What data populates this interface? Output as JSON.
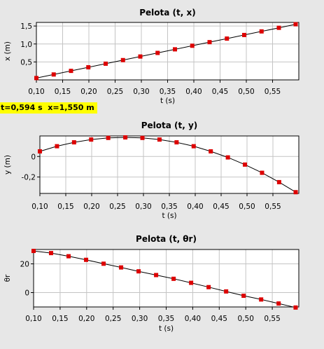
{
  "readout": {
    "text": "t=0,594 s  x=1,550 m",
    "time": 0.594,
    "x": 1.55
  },
  "chart_data": [
    {
      "type": "scatter",
      "title": "Pelota (t, x)",
      "xlabel": "t (s)",
      "ylabel": "x (m)",
      "xlim": [
        0.1,
        0.6
      ],
      "ylim": [
        0.0,
        1.6
      ],
      "xticks": [
        0.1,
        0.15,
        0.2,
        0.25,
        0.3,
        0.35,
        0.4,
        0.45,
        0.5,
        0.55
      ],
      "xtick_labels": [
        "0,10",
        "0,15",
        "0,20",
        "0,25",
        "0,30",
        "0,35",
        "0,40",
        "0,45",
        "0,50",
        "0,55"
      ],
      "yticks": [
        0.5,
        1.0,
        1.5
      ],
      "ytick_labels": [
        "0,5",
        "1,0",
        "1,5"
      ],
      "grid": true,
      "marker_color": "#dd0000",
      "series": [
        {
          "x": [
            0.1,
            0.133,
            0.166,
            0.199,
            0.232,
            0.265,
            0.298,
            0.331,
            0.364,
            0.397,
            0.43,
            0.463,
            0.496,
            0.529,
            0.562,
            0.594
          ],
          "y": [
            0.051,
            0.151,
            0.251,
            0.351,
            0.451,
            0.551,
            0.651,
            0.751,
            0.851,
            0.951,
            1.051,
            1.15,
            1.25,
            1.35,
            1.45,
            1.55
          ]
        }
      ]
    },
    {
      "type": "scatter",
      "title": "Pelota (t, y)",
      "xlabel": "t (s)",
      "ylabel": "y (m)",
      "xlim": [
        0.1,
        0.6
      ],
      "ylim": [
        -0.36,
        0.2
      ],
      "xticks": [
        0.1,
        0.15,
        0.2,
        0.25,
        0.3,
        0.35,
        0.4,
        0.45,
        0.5,
        0.55
      ],
      "xtick_labels": [
        "0,10",
        "0,15",
        "0,20",
        "0,25",
        "0,30",
        "0,35",
        "0,40",
        "0,45",
        "0,50",
        "0,55"
      ],
      "yticks": [
        0.0,
        -0.2
      ],
      "ytick_labels": [
        "0",
        "-0,2"
      ],
      "grid": true,
      "marker_color": "#dd0000",
      "series": [
        {
          "x": [
            0.1,
            0.133,
            0.166,
            0.199,
            0.232,
            0.265,
            0.298,
            0.331,
            0.364,
            0.397,
            0.43,
            0.463,
            0.496,
            0.529,
            0.562,
            0.594
          ],
          "y": [
            0.05,
            0.1,
            0.138,
            0.165,
            0.181,
            0.186,
            0.181,
            0.165,
            0.138,
            0.1,
            0.05,
            -0.009,
            -0.079,
            -0.159,
            -0.25,
            -0.348
          ]
        }
      ]
    },
    {
      "type": "scatter",
      "title": "Pelota (t, θr)",
      "xlabel": "t (s)",
      "ylabel": "θr",
      "xlim": [
        0.1,
        0.6
      ],
      "ylim": [
        -10,
        30
      ],
      "xticks": [
        0.1,
        0.15,
        0.2,
        0.25,
        0.3,
        0.35,
        0.4,
        0.45,
        0.5,
        0.55
      ],
      "xtick_labels": [
        "0,10",
        "0,15",
        "0,20",
        "0,25",
        "0,30",
        "0,35",
        "0,40",
        "0,45",
        "0,50",
        "0,55"
      ],
      "yticks": [
        0,
        20
      ],
      "ytick_labels": [
        "0",
        "20"
      ],
      "grid": true,
      "marker_color": "#dd0000",
      "series": [
        {
          "x": [
            0.1,
            0.133,
            0.166,
            0.199,
            0.232,
            0.265,
            0.298,
            0.331,
            0.364,
            0.397,
            0.43,
            0.463,
            0.496,
            0.529,
            0.562,
            0.594
          ],
          "y": [
            29.0,
            27.5,
            25.3,
            22.8,
            20.1,
            17.5,
            14.8,
            12.2,
            9.6,
            6.8,
            3.8,
            0.8,
            -2.2,
            -4.8,
            -7.6,
            -10.4
          ]
        }
      ]
    }
  ]
}
